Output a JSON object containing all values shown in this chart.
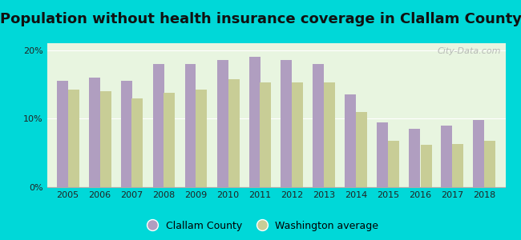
{
  "title": "Population without health insurance coverage in Clallam County",
  "years": [
    2005,
    2006,
    2007,
    2008,
    2009,
    2010,
    2011,
    2012,
    2013,
    2014,
    2015,
    2016,
    2017,
    2018
  ],
  "clallam": [
    15.5,
    16.0,
    15.5,
    18.0,
    18.0,
    18.5,
    19.0,
    18.5,
    18.0,
    13.5,
    9.5,
    8.5,
    9.0,
    9.8
  ],
  "washington": [
    14.2,
    14.0,
    13.0,
    13.8,
    14.2,
    15.8,
    15.3,
    15.3,
    15.3,
    11.0,
    6.8,
    6.2,
    6.3,
    6.8
  ],
  "clallam_color": "#b09ec0",
  "washington_color": "#c8cd96",
  "background_color": "#e8f5e0",
  "outer_background": "#00d8d8",
  "ylim": [
    0,
    21
  ],
  "yticks": [
    0,
    10,
    20
  ],
  "ytick_labels": [
    "0%",
    "10%",
    "20%"
  ],
  "legend_clallam": "Clallam County",
  "legend_washington": "Washington average",
  "bar_width": 0.35,
  "title_fontsize": 13,
  "watermark": "City-Data.com"
}
